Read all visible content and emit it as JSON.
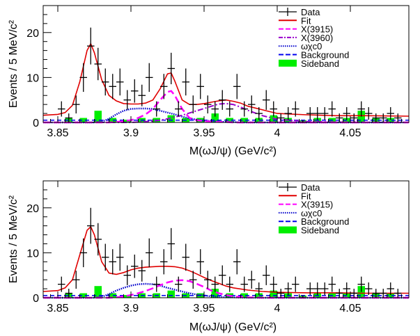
{
  "chart_data": [
    {
      "type": "line",
      "panel": "top",
      "xlabel": "M(ωJ/ψ) (GeV/c²)",
      "ylabel": "Events / 5 MeV/c²",
      "xlim": [
        3.84,
        4.09
      ],
      "ylim": [
        0,
        26
      ],
      "x_ticks": [
        3.85,
        3.9,
        3.95,
        4.0,
        4.05
      ],
      "x_tick_labels": [
        "3.85",
        "3.9",
        "3.95",
        "4",
        "4.05"
      ],
      "y_ticks": [
        0,
        10,
        20
      ],
      "y_tick_labels": [
        "0",
        "10",
        "20"
      ],
      "legend_position": "top-right",
      "legend": [
        {
          "label": "Data",
          "style": "errorbar",
          "color": "#000000"
        },
        {
          "label": "Fit",
          "style": "solid",
          "color": "#e00000"
        },
        {
          "label": "X(3915)",
          "style": "dashed",
          "color": "#ff00ff"
        },
        {
          "label": "X(3960)",
          "style": "dashdot",
          "color": "#9900cc"
        },
        {
          "label": "ωχc0",
          "style": "dotted",
          "color": "#0000cc"
        },
        {
          "label": "Background",
          "style": "dashed",
          "color": "#0000ee"
        },
        {
          "label": "Sideband",
          "style": "fill",
          "color": "#00ee00"
        }
      ],
      "data": {
        "x": [
          3.8525,
          3.8575,
          3.8625,
          3.8675,
          3.8725,
          3.8775,
          3.8825,
          3.8875,
          3.8925,
          3.8975,
          3.9025,
          3.9075,
          3.9125,
          3.9175,
          3.9225,
          3.9275,
          3.9325,
          3.9375,
          3.9425,
          3.9475,
          3.9525,
          3.9575,
          3.9625,
          3.9675,
          3.9725,
          3.9775,
          3.9825,
          3.9875,
          3.9925,
          3.9975,
          4.0025,
          4.0075,
          4.0125,
          4.0175,
          4.0225,
          4.0275,
          4.0325,
          4.0375,
          4.0425,
          4.0475,
          4.0525,
          4.0575,
          4.0625,
          4.0675,
          4.0725,
          4.0775,
          4.0825
        ],
        "y": [
          3,
          1,
          4,
          10,
          17,
          13,
          9,
          8,
          9,
          5,
          7,
          6,
          10,
          3,
          8,
          12,
          3,
          9,
          4,
          8,
          4,
          3,
          5,
          3,
          8,
          3,
          4,
          2,
          5,
          3,
          1,
          2,
          3,
          0,
          2,
          2,
          2,
          3,
          1,
          2,
          1,
          3,
          2,
          1,
          1,
          2,
          1
        ],
        "err": [
          1.7,
          1.0,
          2.0,
          3.2,
          4.1,
          3.6,
          3.0,
          2.8,
          3.0,
          2.2,
          2.6,
          2.4,
          3.2,
          1.7,
          2.8,
          3.5,
          1.7,
          3.0,
          2.0,
          2.8,
          2.0,
          1.7,
          2.2,
          1.7,
          2.8,
          1.7,
          2.0,
          1.4,
          2.2,
          1.7,
          1.0,
          1.4,
          1.7,
          0.5,
          1.4,
          1.4,
          1.4,
          1.7,
          1.0,
          1.4,
          1.0,
          1.7,
          1.4,
          1.0,
          1.0,
          1.4,
          1.0
        ]
      },
      "curves": {
        "x": [
          3.84,
          3.85,
          3.855,
          3.86,
          3.865,
          3.87,
          3.8725,
          3.875,
          3.88,
          3.885,
          3.89,
          3.895,
          3.9,
          3.905,
          3.91,
          3.915,
          3.92,
          3.925,
          3.9275,
          3.93,
          3.935,
          3.94,
          3.945,
          3.95,
          3.955,
          3.96,
          3.965,
          3.97,
          3.975,
          3.98,
          3.99,
          4.0,
          4.02,
          4.04,
          4.06,
          4.09
        ],
        "fit": [
          1.6,
          1.8,
          2.2,
          3.8,
          9.0,
          16.0,
          17.5,
          15.5,
          9.5,
          6.0,
          4.8,
          4.2,
          4.1,
          4.1,
          4.3,
          5.0,
          7.5,
          10.8,
          11.0,
          9.2,
          5.0,
          4.0,
          4.0,
          4.2,
          4.5,
          4.8,
          5.0,
          4.7,
          4.3,
          3.6,
          2.8,
          2.0,
          1.7,
          1.5,
          1.5,
          1.4
        ],
        "x3915": [
          0,
          0,
          0,
          0,
          0,
          0,
          0,
          0,
          0,
          0,
          0.1,
          0.3,
          0.5,
          1.0,
          1.8,
          3.0,
          5.0,
          6.8,
          7.0,
          6.0,
          3.0,
          1.0,
          0.5,
          0.3,
          0.2,
          0.1,
          0.1,
          0,
          0,
          0,
          0,
          0,
          0,
          0,
          0,
          0
        ],
        "x3960": [
          0,
          0,
          0,
          0,
          0,
          0,
          0,
          0,
          0,
          0,
          0,
          0,
          0,
          0.1,
          0.2,
          0.3,
          0.5,
          0.8,
          1.0,
          1.2,
          1.6,
          2.1,
          2.6,
          3.1,
          3.6,
          4.1,
          4.2,
          4.0,
          3.4,
          2.7,
          1.5,
          0.7,
          0.2,
          0.1,
          0,
          0
        ],
        "omega_chic0": [
          0,
          0,
          0,
          0,
          0,
          0,
          0,
          0,
          0.2,
          0.8,
          1.8,
          2.6,
          3.0,
          3.1,
          3.1,
          3.0,
          2.6,
          2.2,
          2.0,
          1.8,
          1.3,
          0.9,
          0.6,
          0.4,
          0.3,
          0.2,
          0.1,
          0.1,
          0,
          0,
          0,
          0,
          0,
          0,
          0,
          0
        ],
        "background": [
          0.5,
          0.5,
          0.5,
          0.5,
          0.5,
          0.5,
          0.5,
          0.5,
          0.5,
          0.5,
          0.5,
          0.5,
          0.5,
          0.5,
          0.5,
          0.5,
          0.5,
          0.5,
          0.5,
          0.5,
          0.5,
          0.5,
          0.5,
          0.5,
          0.5,
          0.5,
          0.5,
          0.5,
          0.5,
          0.5,
          0.5,
          0.5,
          0.5,
          0.5,
          0.5,
          0.5
        ]
      },
      "sideband": {
        "x": [
          3.8575,
          3.8675,
          3.8775,
          3.8875,
          3.8975,
          3.9075,
          3.9175,
          3.9275,
          3.9375,
          3.9475,
          3.9575,
          3.9675,
          3.9775,
          3.9875,
          3.9975,
          4.0075,
          4.0175,
          4.0275,
          4.0375,
          4.0475,
          4.0575,
          4.0675,
          4.0775
        ],
        "y": [
          1,
          1,
          2.6,
          1,
          0.6,
          1,
          1,
          1.6,
          1,
          1,
          2,
          1,
          1,
          1,
          1.6,
          1,
          0.5,
          1,
          1,
          1,
          2.6,
          1,
          1
        ]
      }
    },
    {
      "type": "line",
      "panel": "bottom",
      "xlabel": "M(ωJ/ψ) (GeV/c²)",
      "ylabel": "Events / 5 MeV/c²",
      "xlim": [
        3.84,
        4.09
      ],
      "ylim": [
        0,
        26
      ],
      "x_ticks": [
        3.85,
        3.9,
        3.95,
        4.0,
        4.05
      ],
      "x_tick_labels": [
        "3.85",
        "3.9",
        "3.95",
        "4",
        "4.05"
      ],
      "y_ticks": [
        0,
        10,
        20
      ],
      "y_tick_labels": [
        "0",
        "10",
        "20"
      ],
      "legend_position": "top-right",
      "legend": [
        {
          "label": "Data",
          "style": "errorbar",
          "color": "#000000"
        },
        {
          "label": "Fit",
          "style": "solid",
          "color": "#e00000"
        },
        {
          "label": "X(3915)",
          "style": "dashed",
          "color": "#ff00ff"
        },
        {
          "label": "ωχc0",
          "style": "dotted",
          "color": "#0000cc"
        },
        {
          "label": "Background",
          "style": "dashed",
          "color": "#0000ee"
        },
        {
          "label": "Sideband",
          "style": "fill",
          "color": "#00ee00"
        }
      ],
      "data": {
        "x": [
          3.8525,
          3.8575,
          3.8625,
          3.8675,
          3.8725,
          3.8775,
          3.8825,
          3.8875,
          3.8925,
          3.8975,
          3.9025,
          3.9075,
          3.9125,
          3.9175,
          3.9225,
          3.9275,
          3.9325,
          3.9375,
          3.9425,
          3.9475,
          3.9525,
          3.9575,
          3.9625,
          3.9675,
          3.9725,
          3.9775,
          3.9825,
          3.9875,
          3.9925,
          3.9975,
          4.0025,
          4.0075,
          4.0125,
          4.0175,
          4.0225,
          4.0275,
          4.0325,
          4.0375,
          4.0425,
          4.0475,
          4.0525,
          4.0575,
          4.0625,
          4.0675,
          4.0725,
          4.0775,
          4.0825
        ],
        "y": [
          3,
          1,
          4,
          10,
          16,
          13,
          9,
          8,
          9,
          5,
          7,
          6,
          10,
          3,
          8,
          12,
          3,
          9,
          4,
          8,
          4,
          3,
          5,
          3,
          8,
          3,
          4,
          2,
          5,
          3,
          1,
          2,
          3,
          0,
          2,
          2,
          2,
          3,
          1,
          2,
          1,
          3,
          2,
          1,
          1,
          2,
          1
        ],
        "err": [
          1.7,
          1.0,
          2.0,
          3.2,
          4.0,
          3.6,
          3.0,
          2.8,
          3.0,
          2.2,
          2.6,
          2.4,
          3.2,
          1.7,
          2.8,
          3.5,
          1.7,
          3.0,
          2.0,
          2.8,
          2.0,
          1.7,
          2.2,
          1.7,
          2.8,
          1.7,
          2.0,
          1.4,
          2.2,
          1.7,
          1.0,
          1.4,
          1.7,
          0.5,
          1.4,
          1.4,
          1.4,
          1.7,
          1.0,
          1.4,
          1.0,
          1.7,
          1.4,
          1.0,
          1.0,
          1.4,
          1.0
        ]
      },
      "curves": {
        "x": [
          3.84,
          3.85,
          3.855,
          3.86,
          3.865,
          3.87,
          3.8725,
          3.875,
          3.88,
          3.885,
          3.89,
          3.895,
          3.9,
          3.905,
          3.91,
          3.915,
          3.92,
          3.925,
          3.93,
          3.935,
          3.94,
          3.945,
          3.95,
          3.955,
          3.96,
          3.965,
          3.97,
          3.98,
          3.99,
          4.0,
          4.02,
          4.04,
          4.06,
          4.09
        ],
        "fit": [
          1.4,
          1.6,
          2.2,
          4.0,
          9.5,
          15.0,
          15.8,
          14.0,
          8.0,
          5.5,
          5.2,
          5.6,
          6.2,
          6.6,
          6.8,
          6.9,
          7.0,
          7.0,
          6.9,
          6.6,
          6.0,
          5.3,
          4.5,
          3.8,
          3.2,
          2.6,
          2.2,
          1.7,
          1.4,
          1.2,
          1.1,
          1.1,
          1.0,
          1.0
        ],
        "x3915": [
          0,
          0,
          0,
          0,
          0,
          0,
          0,
          0,
          0,
          0,
          0.1,
          0.3,
          0.6,
          1.0,
          1.5,
          2.1,
          2.8,
          3.4,
          3.8,
          3.9,
          3.7,
          3.1,
          2.4,
          1.6,
          1.0,
          0.6,
          0.3,
          0.1,
          0,
          0,
          0,
          0,
          0,
          0
        ],
        "omega_chic0": [
          0,
          0,
          0,
          0,
          0,
          0,
          0,
          0,
          0.2,
          0.8,
          1.6,
          2.2,
          2.7,
          3.0,
          3.1,
          3.0,
          2.7,
          2.2,
          1.8,
          1.4,
          1.0,
          0.7,
          0.5,
          0.3,
          0.2,
          0.1,
          0.1,
          0,
          0,
          0,
          0,
          0,
          0,
          0
        ],
        "background": [
          0.5,
          0.5,
          0.5,
          0.5,
          0.5,
          0.5,
          0.5,
          0.5,
          0.5,
          0.5,
          0.5,
          0.5,
          0.5,
          0.5,
          0.5,
          0.5,
          0.5,
          0.5,
          0.5,
          0.5,
          0.5,
          0.5,
          0.5,
          0.5,
          0.5,
          0.5,
          0.5,
          0.5,
          0.5,
          0.5,
          0.5,
          0.5,
          0.5,
          0.5
        ]
      },
      "sideband": {
        "x": [
          3.8575,
          3.8675,
          3.8775,
          3.8875,
          3.8975,
          3.9075,
          3.9175,
          3.9275,
          3.9375,
          3.9475,
          3.9575,
          3.9675,
          3.9775,
          3.9875,
          3.9975,
          4.0075,
          4.0175,
          4.0275,
          4.0375,
          4.0475,
          4.0575,
          4.0675,
          4.0775
        ],
        "y": [
          1,
          1,
          2.6,
          1,
          0.6,
          1,
          1,
          1.6,
          1,
          1,
          2,
          1,
          1,
          1,
          1.6,
          1,
          0.5,
          1,
          1,
          1,
          2.6,
          1,
          1
        ]
      }
    }
  ]
}
